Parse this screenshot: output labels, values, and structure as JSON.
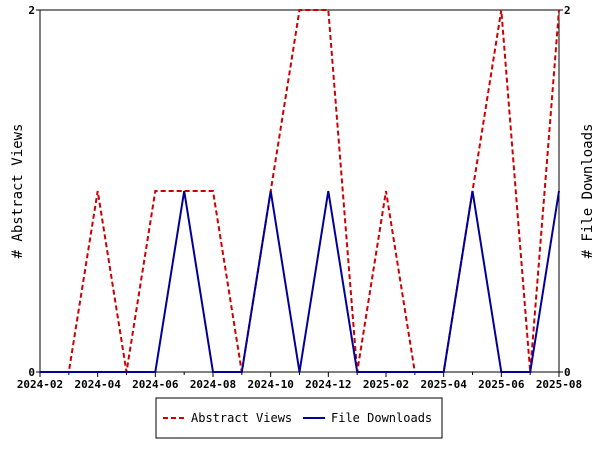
{
  "chart_data": {
    "type": "line",
    "x": [
      "2024-02",
      "2024-03",
      "2024-04",
      "2024-05",
      "2024-06",
      "2024-07",
      "2024-08",
      "2024-09",
      "2024-10",
      "2024-11",
      "2024-12",
      "2025-01",
      "2025-02",
      "2025-03",
      "2025-04",
      "2025-05",
      "2025-06",
      "2025-07",
      "2025-08"
    ],
    "xticks": [
      "2024-02",
      "2024-04",
      "2024-06",
      "2024-08",
      "2024-10",
      "2024-12",
      "2025-02",
      "2025-04",
      "2025-06",
      "2025-08"
    ],
    "series": [
      {
        "name": "Abstract Views",
        "color": "#cc0000",
        "dash": "dashed",
        "values": [
          0,
          0,
          1,
          0,
          1,
          1,
          1,
          0,
          1,
          2,
          2,
          0,
          1,
          0,
          0,
          1,
          2,
          0,
          2
        ]
      },
      {
        "name": "File Downloads",
        "color": "#000099",
        "dash": "solid",
        "values": [
          0,
          0,
          0,
          0,
          0,
          1,
          0,
          0,
          1,
          0,
          1,
          0,
          0,
          0,
          0,
          1,
          0,
          0,
          1
        ]
      }
    ],
    "ylabel": "# Abstract Views",
    "y2label": "# File Downloads",
    "ylim": [
      0,
      2
    ],
    "y2lim": [
      0,
      2
    ],
    "yticks": [
      "0",
      "2"
    ],
    "y2ticks": [
      "0",
      "2"
    ],
    "grid": false,
    "legend_position": "bottom"
  }
}
